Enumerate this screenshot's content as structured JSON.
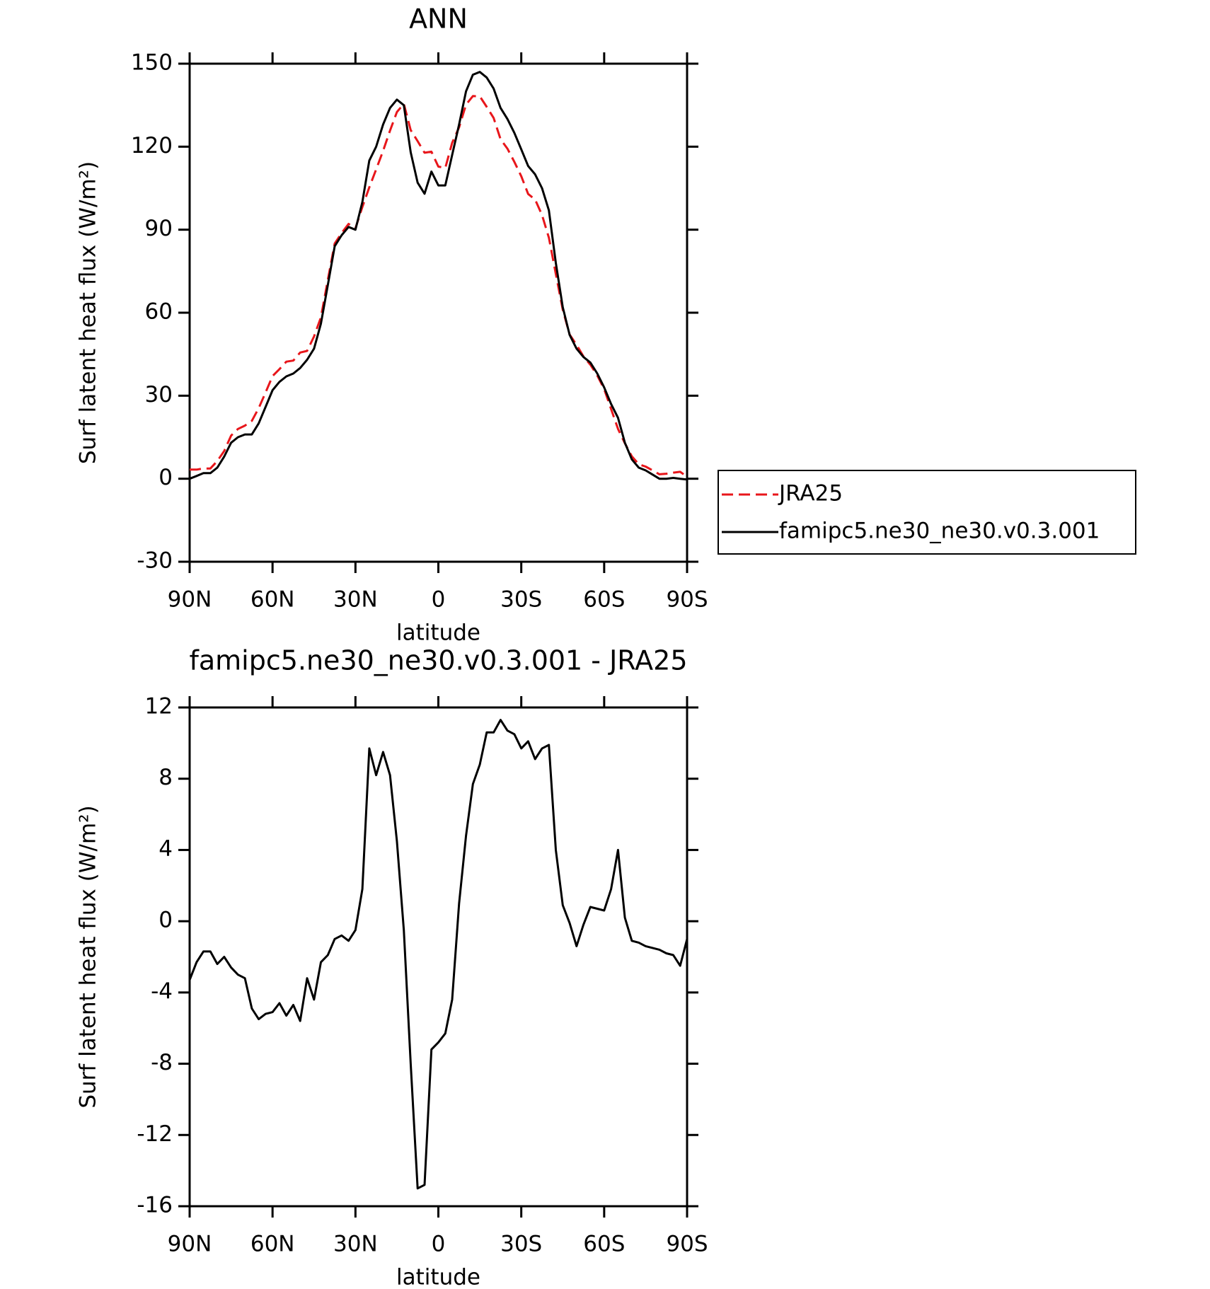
{
  "chart_data": [
    {
      "type": "line",
      "title": "ANN",
      "x_label": "latitude",
      "y_label": "Surf latent heat flux (W/m²)",
      "x": [
        90,
        87.5,
        85,
        82.5,
        80,
        77.5,
        75,
        72.5,
        70,
        67.5,
        65,
        62.5,
        60,
        57.5,
        55,
        52.5,
        50,
        47.5,
        45,
        42.5,
        40,
        37.5,
        35,
        32.5,
        30,
        27.5,
        25,
        22.5,
        20,
        17.5,
        15,
        12.5,
        10,
        7.5,
        5,
        2.5,
        0,
        -2.5,
        -5,
        -7.5,
        -10,
        -12.5,
        -15,
        -17.5,
        -20,
        -22.5,
        -25,
        -27.5,
        -30,
        -32.5,
        -35,
        -37.5,
        -40,
        -42.5,
        -45,
        -47.5,
        -50,
        -52.5,
        -55,
        -57.5,
        -60,
        -62.5,
        -65,
        -67.5,
        -70,
        -72.5,
        -75,
        -77.5,
        -80,
        -82.5,
        -85,
        -87.5,
        -90
      ],
      "series": [
        {
          "name": "JRA25",
          "color": "#e8161b",
          "dash": true,
          "values": [
            3.3,
            3.3,
            3.7,
            3.7,
            6.4,
            10,
            15.6,
            18,
            19.2,
            20.9,
            25.5,
            31.2,
            37.1,
            39.6,
            42.3,
            42.7,
            45.6,
            46.2,
            51.4,
            58.3,
            71.9,
            85,
            88.8,
            92.1,
            90.5,
            98.2,
            105.3,
            111.8,
            118.5,
            125.8,
            132.5,
            135.5,
            126,
            122,
            117.8,
            118.2,
            112.8,
            112.3,
            121.4,
            127,
            135.2,
            138.3,
            138.2,
            134.4,
            130.4,
            122.7,
            119.3,
            114.5,
            109.3,
            102.9,
            100.9,
            95.3,
            87.1,
            74,
            61.1,
            52.1,
            48.4,
            44.2,
            41.2,
            37.3,
            32.4,
            25.2,
            18,
            12.8,
            8.1,
            5.2,
            4.4,
            3,
            1.6,
            1.8,
            2.2,
            2.5,
            0.7
          ]
        },
        {
          "name": "famipc5.ne30_ne30.v0.3.001",
          "color": "#000000",
          "dash": false,
          "values": [
            0,
            1,
            2,
            2,
            4,
            8,
            13,
            15,
            16,
            16,
            20,
            26,
            32,
            35,
            37,
            38,
            40,
            43,
            47,
            56,
            70,
            84,
            88,
            91,
            90,
            100,
            115,
            120,
            128,
            134,
            137,
            135,
            118,
            107,
            103,
            111,
            106,
            106,
            117,
            128,
            140,
            146,
            147,
            145,
            141,
            134,
            130,
            125,
            119,
            113,
            110,
            105,
            97,
            78,
            62,
            52,
            47,
            44,
            42,
            38,
            33,
            27,
            22,
            13,
            7,
            4,
            3,
            1.5,
            0,
            0,
            0.3,
            0,
            -0.3
          ]
        }
      ],
      "xlim": [
        90,
        -90
      ],
      "xticks": [
        {
          "value": 90,
          "label": "90N"
        },
        {
          "value": 60,
          "label": "60N"
        },
        {
          "value": 30,
          "label": "30N"
        },
        0,
        {
          "value": -30,
          "label": "30S"
        },
        {
          "value": -60,
          "label": "60S"
        },
        {
          "value": -90,
          "label": "90S"
        }
      ],
      "ylim": [
        -30,
        150
      ],
      "yticks": [
        -30,
        0,
        30,
        60,
        90,
        120,
        150
      ],
      "legend": "right"
    },
    {
      "type": "line",
      "title": "famipc5.ne30_ne30.v0.3.001 - JRA25",
      "x_label": "latitude",
      "y_label": "Surf latent heat flux (W/m²)",
      "x": [
        90,
        87.5,
        85,
        82.5,
        80,
        77.5,
        75,
        72.5,
        70,
        67.5,
        65,
        62.5,
        60,
        57.5,
        55,
        52.5,
        50,
        47.5,
        45,
        42.5,
        40,
        37.5,
        35,
        32.5,
        30,
        27.5,
        25,
        22.5,
        20,
        17.5,
        15,
        12.5,
        10,
        7.5,
        5,
        2.5,
        0,
        -2.5,
        -5,
        -7.5,
        -10,
        -12.5,
        -15,
        -17.5,
        -20,
        -22.5,
        -25,
        -27.5,
        -30,
        -32.5,
        -35,
        -37.5,
        -40,
        -42.5,
        -45,
        -47.5,
        -50,
        -52.5,
        -55,
        -57.5,
        -60,
        -62.5,
        -65,
        -67.5,
        -70,
        -72.5,
        -75,
        -77.5,
        -80,
        -82.5,
        -85,
        -87.5,
        -90
      ],
      "values": [
        -3.3,
        -2.3,
        -1.7,
        -1.7,
        -2.4,
        -2.0,
        -2.6,
        -3.0,
        -3.2,
        -4.9,
        -5.5,
        -5.2,
        -5.1,
        -4.6,
        -5.3,
        -4.7,
        -5.6,
        -3.2,
        -4.4,
        -2.3,
        -1.9,
        -1.0,
        -0.8,
        -1.1,
        -0.5,
        1.8,
        9.7,
        8.2,
        9.5,
        8.2,
        4.5,
        -0.5,
        -8.0,
        -15.0,
        -14.8,
        -7.2,
        -6.8,
        -6.3,
        -4.4,
        1.0,
        4.8,
        7.7,
        8.8,
        10.6,
        10.6,
        11.3,
        10.7,
        10.5,
        9.7,
        10.1,
        9.1,
        9.7,
        9.9,
        4.0,
        0.9,
        -0.1,
        -1.4,
        -0.2,
        0.8,
        0.7,
        0.6,
        1.8,
        4.0,
        0.2,
        -1.1,
        -1.2,
        -1.4,
        -1.5,
        -1.6,
        -1.8,
        -1.9,
        -2.5,
        -1.0
      ],
      "color": "#000000",
      "xlim": [
        90,
        -90
      ],
      "xticks": [
        {
          "value": 90,
          "label": "90N"
        },
        {
          "value": 60,
          "label": "60N"
        },
        {
          "value": 30,
          "label": "30N"
        },
        0,
        {
          "value": -30,
          "label": "30S"
        },
        {
          "value": -60,
          "label": "60S"
        },
        {
          "value": -90,
          "label": "90S"
        }
      ],
      "ylim": [
        -16,
        12
      ],
      "yticks": [
        -16,
        -12,
        -8,
        -4,
        0,
        4,
        8,
        12
      ]
    }
  ]
}
